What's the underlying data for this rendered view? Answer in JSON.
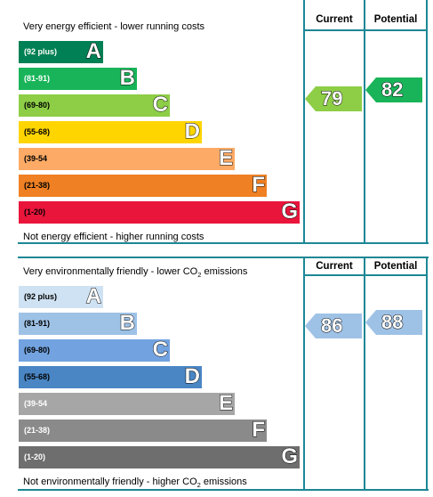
{
  "chart_data": [
    {
      "type": "bar",
      "name": "energy-efficiency",
      "columns": [
        "Current",
        "Potential"
      ],
      "top_caption": "Very energy efficient - lower running costs",
      "bottom_caption": "Not energy efficient - higher running costs",
      "bands": [
        {
          "range": "(92 plus)",
          "letter": "A",
          "color": "#008054",
          "text_color": "#ffffff"
        },
        {
          "range": "(81-91)",
          "letter": "B",
          "color": "#19b459",
          "text_color": "#ffffff"
        },
        {
          "range": "(69-80)",
          "letter": "C",
          "color": "#8dce46",
          "text_color": "#000000"
        },
        {
          "range": "(55-68)",
          "letter": "D",
          "color": "#ffd500",
          "text_color": "#000000"
        },
        {
          "range": "(39-54",
          "letter": "E",
          "color": "#fcaa65",
          "text_color": "#000000"
        },
        {
          "range": "(21-38)",
          "letter": "F",
          "color": "#ef8023",
          "text_color": "#000000"
        },
        {
          "range": "(1-20)",
          "letter": "G",
          "color": "#e9153b",
          "text_color": "#000000"
        }
      ],
      "current": {
        "value": 79,
        "band": "C",
        "color": "#8dce46"
      },
      "potential": {
        "value": 82,
        "band": "B",
        "color": "#19b459"
      }
    },
    {
      "type": "bar",
      "name": "environmental-impact",
      "columns": [
        "Current",
        "Potential"
      ],
      "top_caption_main": "Very environmentally friendly - lower CO",
      "top_caption_sub": "2",
      "top_caption_end": " emissions",
      "bottom_caption_main": "Not environmentally friendly - higher CO",
      "bottom_caption_sub": "2",
      "bottom_caption_end": " emissions",
      "bands": [
        {
          "range": "(92 plus)",
          "letter": "A",
          "color": "#cfe2f3",
          "text_color": "#000000"
        },
        {
          "range": "(81-91)",
          "letter": "B",
          "color": "#9ec2e6",
          "text_color": "#000000"
        },
        {
          "range": "(69-80)",
          "letter": "C",
          "color": "#72a3e0",
          "text_color": "#000000"
        },
        {
          "range": "(55-68)",
          "letter": "D",
          "color": "#4a86c4",
          "text_color": "#000000"
        },
        {
          "range": "(39-54",
          "letter": "E",
          "color": "#a6a6a6",
          "text_color": "#ffffff"
        },
        {
          "range": "(21-38)",
          "letter": "F",
          "color": "#8a8a8a",
          "text_color": "#ffffff"
        },
        {
          "range": "(1-20)",
          "letter": "G",
          "color": "#6e6e6e",
          "text_color": "#ffffff"
        }
      ],
      "current": {
        "value": 86,
        "band": "B",
        "color": "#9ec2e6"
      },
      "potential": {
        "value": 88,
        "band": "B",
        "color": "#9ec2e6"
      }
    }
  ],
  "colors": {
    "frame": "#1c8795"
  }
}
